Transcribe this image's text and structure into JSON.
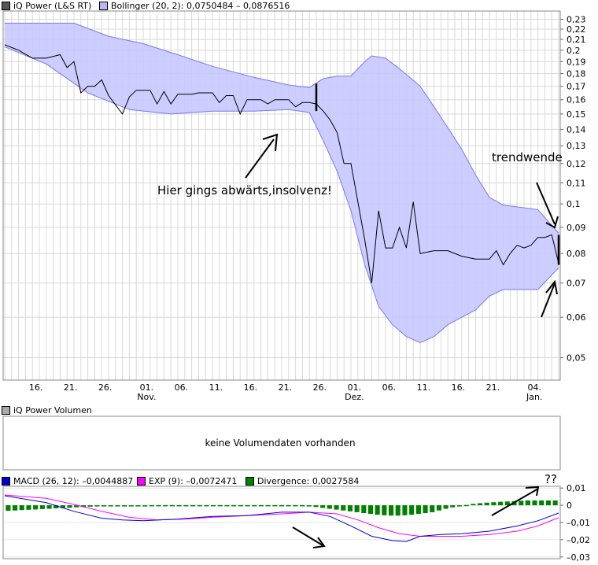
{
  "colors": {
    "band_fill": "#c8c8ff",
    "band_line": "#7777ee",
    "price_line": "#000000",
    "grid": "#d8d8d8",
    "macd": "#0000cc",
    "exp": "#ff00ff",
    "divergence": "#008000",
    "price_swatch": "#555555",
    "volume_swatch": "#aaaaaa"
  },
  "legends": {
    "price": "iQ Power (L&S RT)",
    "bollinger": "Bollinger (20, 2): 0,0750484 – 0,0876516",
    "volume": "iQ Power Volumen",
    "macd": "MACD (26, 12): –0,0044887",
    "exp": "EXP (9): –0,0072471",
    "divergence": "Divergence: 0,0027584"
  },
  "volume_message": "keine Volumendaten vorhanden",
  "annotations": {
    "insolvency": "Hier gings abwärts,insolvenz!",
    "trend_change": "trendwende",
    "question": "??"
  },
  "chart_data": [
    {
      "type": "line",
      "title": "iQ Power (L&S RT)",
      "yscale": "log",
      "ylim": [
        0.045,
        0.235
      ],
      "yticks": [
        0.23,
        0.22,
        0.21,
        0.2,
        0.19,
        0.18,
        0.17,
        0.16,
        0.15,
        0.14,
        0.13,
        0.12,
        0.11,
        0.1,
        0.09,
        0.08,
        0.07,
        0.06,
        0.05
      ],
      "ytick_labels": [
        "0,23",
        "0,22",
        "0,21",
        "0,2",
        "0,19",
        "0,18",
        "0,17",
        "0,16",
        "0,15",
        "0,14",
        "0,13",
        "0,12",
        "0,11",
        "0,1",
        "0,09",
        "0,08",
        "0,07",
        "0,06",
        "0,05"
      ],
      "x_range": [
        0,
        80
      ],
      "x_ticks": [
        {
          "x": 4.5,
          "label": "16.",
          "sub": ""
        },
        {
          "x": 9.5,
          "label": "21.",
          "sub": ""
        },
        {
          "x": 14.5,
          "label": "26.",
          "sub": ""
        },
        {
          "x": 20.5,
          "label": "01.",
          "sub": "Nov."
        },
        {
          "x": 25.5,
          "label": "06.",
          "sub": ""
        },
        {
          "x": 30.5,
          "label": "11.",
          "sub": ""
        },
        {
          "x": 35.5,
          "label": "16.",
          "sub": ""
        },
        {
          "x": 40.5,
          "label": "21.",
          "sub": ""
        },
        {
          "x": 45.5,
          "label": "26.",
          "sub": ""
        },
        {
          "x": 50.5,
          "label": "01.",
          "sub": "Dez."
        },
        {
          "x": 55.5,
          "label": "06.",
          "sub": ""
        },
        {
          "x": 60.5,
          "label": "11.",
          "sub": ""
        },
        {
          "x": 65.5,
          "label": "16.",
          "sub": ""
        },
        {
          "x": 70.5,
          "label": "21.",
          "sub": ""
        },
        {
          "x": 76.5,
          "label": "04.",
          "sub": "Jan."
        }
      ],
      "series": [
        {
          "name": "Bollinger upper",
          "points": [
            [
              0,
              0.226
            ],
            [
              10,
              0.226
            ],
            [
              15,
              0.213
            ],
            [
              20,
              0.206
            ],
            [
              25,
              0.196
            ],
            [
              30,
              0.186
            ],
            [
              36,
              0.177
            ],
            [
              41,
              0.171
            ],
            [
              44,
              0.169
            ],
            [
              46,
              0.176
            ],
            [
              48,
              0.178
            ],
            [
              50,
              0.178
            ],
            [
              52,
              0.19
            ],
            [
              53,
              0.195
            ],
            [
              55,
              0.193
            ],
            [
              57,
              0.184
            ],
            [
              60,
              0.17
            ],
            [
              62,
              0.155
            ],
            [
              64,
              0.141
            ],
            [
              66,
              0.128
            ],
            [
              68,
              0.114
            ],
            [
              70,
              0.103
            ],
            [
              72,
              0.0995
            ],
            [
              77,
              0.0975
            ],
            [
              80,
              0.0876
            ]
          ]
        },
        {
          "name": "Bollinger lower",
          "points": [
            [
              0,
              0.203
            ],
            [
              6,
              0.188
            ],
            [
              12,
              0.165
            ],
            [
              18,
              0.153
            ],
            [
              24,
              0.15
            ],
            [
              30,
              0.152
            ],
            [
              36,
              0.152
            ],
            [
              41,
              0.153
            ],
            [
              44,
              0.151
            ],
            [
              46,
              0.133
            ],
            [
              48,
              0.116
            ],
            [
              50,
              0.097
            ],
            [
              52,
              0.076
            ],
            [
              54,
              0.063
            ],
            [
              56,
              0.058
            ],
            [
              58,
              0.055
            ],
            [
              60,
              0.0535
            ],
            [
              62,
              0.055
            ],
            [
              64,
              0.058
            ],
            [
              66,
              0.06
            ],
            [
              68,
              0.062
            ],
            [
              70,
              0.066
            ],
            [
              72,
              0.068
            ],
            [
              77,
              0.068
            ],
            [
              80,
              0.075
            ]
          ]
        },
        {
          "name": "Price",
          "points": [
            [
              0,
              0.205
            ],
            [
              2,
              0.2
            ],
            [
              4,
              0.193
            ],
            [
              6,
              0.193
            ],
            [
              8,
              0.196
            ],
            [
              9,
              0.185
            ],
            [
              10,
              0.19
            ],
            [
              11,
              0.165
            ],
            [
              12,
              0.17
            ],
            [
              13,
              0.17
            ],
            [
              14,
              0.175
            ],
            [
              15,
              0.163
            ],
            [
              17,
              0.15
            ],
            [
              18,
              0.162
            ],
            [
              19,
              0.167
            ],
            [
              21,
              0.167
            ],
            [
              22,
              0.157
            ],
            [
              23,
              0.166
            ],
            [
              24,
              0.157
            ],
            [
              25,
              0.164
            ],
            [
              27,
              0.164
            ],
            [
              28,
              0.165
            ],
            [
              30,
              0.165
            ],
            [
              31,
              0.158
            ],
            [
              32,
              0.163
            ],
            [
              33,
              0.163
            ],
            [
              34,
              0.15
            ],
            [
              35,
              0.16
            ],
            [
              37,
              0.16
            ],
            [
              38,
              0.157
            ],
            [
              39,
              0.16
            ],
            [
              41,
              0.16
            ],
            [
              42,
              0.155
            ],
            [
              43,
              0.158
            ],
            [
              44,
              0.158
            ],
            [
              45,
              0.157
            ],
            [
              46,
              0.152
            ],
            [
              47,
              0.146
            ],
            [
              48,
              0.138
            ],
            [
              49,
              0.12
            ],
            [
              50,
              0.12
            ],
            [
              52,
              0.085
            ],
            [
              53,
              0.07
            ],
            [
              54,
              0.097
            ],
            [
              55,
              0.082
            ],
            [
              56,
              0.082
            ],
            [
              57,
              0.09
            ],
            [
              58,
              0.082
            ],
            [
              59,
              0.101
            ],
            [
              60,
              0.08
            ],
            [
              62,
              0.081
            ],
            [
              64,
              0.081
            ],
            [
              66,
              0.079
            ],
            [
              68,
              0.078
            ],
            [
              70,
              0.078
            ],
            [
              71,
              0.081
            ],
            [
              72,
              0.076
            ],
            [
              73,
              0.08
            ],
            [
              74,
              0.083
            ],
            [
              75,
              0.082
            ],
            [
              76,
              0.083
            ],
            [
              77,
              0.086
            ],
            [
              78,
              0.086
            ],
            [
              79,
              0.087
            ],
            [
              80,
              0.0765
            ]
          ]
        },
        {
          "name": "Bar 1 high/low",
          "bar": [
            45,
            0.152,
            0.172
          ]
        },
        {
          "name": "Bar 2 high/low",
          "bar": [
            80,
            0.076,
            0.087
          ]
        }
      ]
    },
    {
      "type": "bar",
      "title": "MACD (26, 12) / EXP (9) / Divergence",
      "ylim": [
        -0.031,
        0.011
      ],
      "yticks": [
        0.01,
        0,
        -0.01,
        -0.02,
        -0.03
      ],
      "ytick_labels": [
        "0,01",
        "0",
        "–0,01",
        "–0,02",
        "–0,03"
      ],
      "series": [
        {
          "name": "MACD",
          "points": [
            [
              0,
              0.0055
            ],
            [
              6,
              0.0015
            ],
            [
              10,
              -0.0035
            ],
            [
              14,
              -0.0075
            ],
            [
              17,
              -0.0085
            ],
            [
              20,
              -0.009
            ],
            [
              25,
              -0.008
            ],
            [
              30,
              -0.0065
            ],
            [
              35,
              -0.006
            ],
            [
              40,
              -0.004
            ],
            [
              44,
              -0.004
            ],
            [
              47,
              -0.0065
            ],
            [
              50,
              -0.012
            ],
            [
              53,
              -0.018
            ],
            [
              56,
              -0.0205
            ],
            [
              58,
              -0.021
            ],
            [
              60,
              -0.018
            ],
            [
              63,
              -0.017
            ],
            [
              66,
              -0.0165
            ],
            [
              70,
              -0.015
            ],
            [
              74,
              -0.012
            ],
            [
              77,
              -0.009
            ],
            [
              80,
              -0.0045
            ]
          ]
        },
        {
          "name": "EXP",
          "points": [
            [
              0,
              0.006
            ],
            [
              6,
              0.004
            ],
            [
              10,
              0.0005
            ],
            [
              14,
              -0.0035
            ],
            [
              18,
              -0.007
            ],
            [
              22,
              -0.0085
            ],
            [
              26,
              -0.008
            ],
            [
              30,
              -0.007
            ],
            [
              35,
              -0.006
            ],
            [
              40,
              -0.005
            ],
            [
              44,
              -0.004
            ],
            [
              48,
              -0.005
            ],
            [
              51,
              -0.0085
            ],
            [
              54,
              -0.013
            ],
            [
              57,
              -0.0165
            ],
            [
              60,
              -0.018
            ],
            [
              63,
              -0.018
            ],
            [
              66,
              -0.018
            ],
            [
              70,
              -0.017
            ],
            [
              74,
              -0.015
            ],
            [
              77,
              -0.012
            ],
            [
              80,
              -0.0072
            ]
          ]
        },
        {
          "name": "Divergence",
          "values": [
            -0.0032,
            -0.003,
            -0.0028,
            -0.0026,
            -0.0024,
            -0.0022,
            -0.002,
            -0.0018,
            -0.0016,
            -0.0014,
            -0.0012,
            -0.001,
            -0.0008,
            -0.0006,
            -0.0004,
            -0.0003,
            -0.0002,
            -0.0001,
            -0.0001,
            0.0,
            0.0,
            0.0001,
            0.0001,
            0.0001,
            0.0001,
            0.0001,
            0.0001,
            0.0001,
            0.0001,
            0.0001,
            0.0001,
            0.0001,
            0.0001,
            0.0001,
            0.0001,
            0.0001,
            0.0001,
            0.0001,
            0.0001,
            0.0001,
            0.0001,
            0.0001,
            0.0001,
            0.0001,
            -0.0005,
            -0.001,
            -0.0015,
            -0.002,
            -0.0025,
            -0.003,
            -0.0035,
            -0.004,
            -0.0045,
            -0.005,
            -0.0055,
            -0.0058,
            -0.006,
            -0.006,
            -0.0058,
            -0.0055,
            -0.005,
            -0.0045,
            -0.004,
            -0.003,
            -0.002,
            -0.0012,
            -0.0005,
            0.0002,
            0.0008,
            0.0012,
            0.0015,
            0.0018,
            0.002,
            0.0022,
            0.0024,
            0.0026,
            0.0028,
            0.0028,
            0.0028,
            0.0028,
            0.0028
          ]
        }
      ]
    }
  ]
}
